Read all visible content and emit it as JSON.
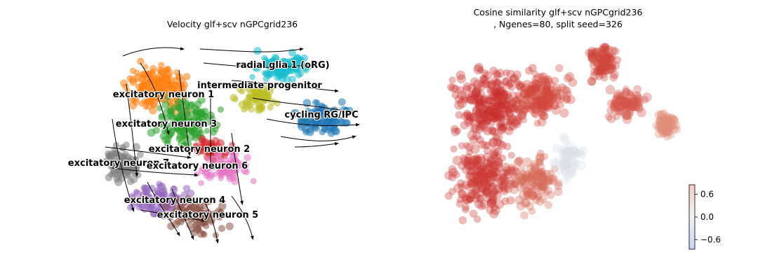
{
  "chart_data": [
    {
      "type": "scatter",
      "title": "Velocity glf+scv nGPCgrid236",
      "xlabel": "",
      "ylabel": "",
      "grid": false,
      "legend": "on-data",
      "overlay": "velocity stream lines with arrowheads",
      "clusters": [
        {
          "name": "radial glia 1 (oRG)",
          "color": "#17becf"
        },
        {
          "name": "intermediate progenitor",
          "color": "#bcbd22"
        },
        {
          "name": "excitatory neuron 1",
          "color": "#ff7f0e"
        },
        {
          "name": "cycling RG/IPC",
          "color": "#1f77b4"
        },
        {
          "name": "excitatory neuron 3",
          "color": "#2ca02c"
        },
        {
          "name": "excitatory neuron 2",
          "color": "#d62728"
        },
        {
          "name": "excitatory neuron 7",
          "color": "#7f7f7f"
        },
        {
          "name": "excitatory neuron 6",
          "color": "#e377c2"
        },
        {
          "name": "excitatory neuron 4",
          "color": "#9467bd"
        },
        {
          "name": "excitatory neuron 5",
          "color": "#8c564b"
        }
      ]
    },
    {
      "type": "scatter",
      "title": "Cosine similarity glf+scv nGPCgrid236",
      "subtitle": ", Ngenes=80, split seed=326",
      "xlabel": "",
      "ylabel": "",
      "grid": false,
      "colormap": "coolwarm",
      "colorbar": {
        "ticks": [
          0.6,
          0.0,
          -0.6
        ],
        "tick_labels": [
          "0.6",
          "0.0",
          "−0.6"
        ],
        "range": [
          -0.85,
          0.85
        ]
      },
      "dominant_value": 0.8
    }
  ]
}
